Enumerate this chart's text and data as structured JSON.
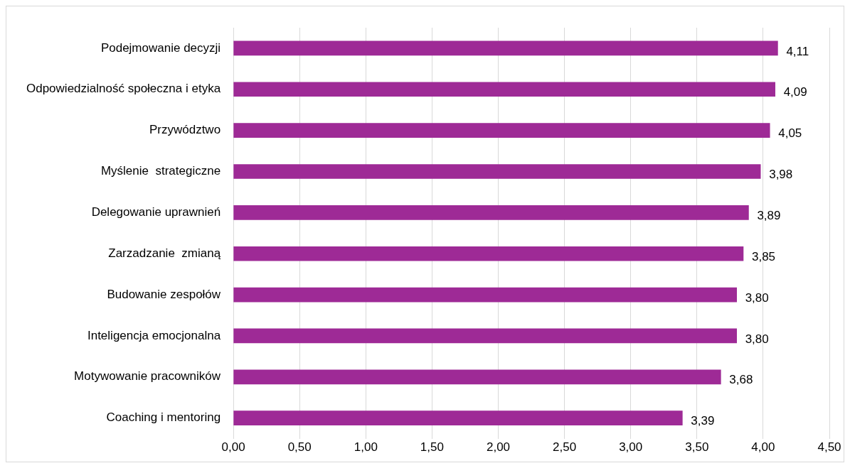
{
  "chart_data": {
    "type": "bar",
    "orientation": "horizontal",
    "categories": [
      "Podejmowanie decyzji",
      "Odpowiedzialność społeczna i etyka",
      "Przywództwo",
      "Myślenie  strategiczne",
      "Delegowanie uprawnień",
      "Zarzadzanie  zmianą",
      "Budowanie zespołów",
      "Inteligencja emocjonalna",
      "Motywowanie pracowników",
      "Coaching i mentoring"
    ],
    "values": [
      4.11,
      4.09,
      4.05,
      3.98,
      3.89,
      3.85,
      3.8,
      3.8,
      3.68,
      3.39
    ],
    "value_labels": [
      "4,11",
      "4,09",
      "4,05",
      "3,98",
      "3,89",
      "3,85",
      "3,80",
      "3,80",
      "3,68",
      "3,39"
    ],
    "color": "#9e2a96",
    "xlim": [
      0,
      4.5
    ],
    "xticks": [
      {
        "value": 0,
        "label": "0,00"
      },
      {
        "value": 0.5,
        "label": "0,50"
      },
      {
        "value": 1,
        "label": "1,00"
      },
      {
        "value": 1.5,
        "label": "1,50"
      },
      {
        "value": 2,
        "label": "2,00"
      },
      {
        "value": 2.5,
        "label": "2,50"
      },
      {
        "value": 3,
        "label": "3,00"
      },
      {
        "value": 3.5,
        "label": "3,50"
      },
      {
        "value": 4,
        "label": "4,00"
      },
      {
        "value": 4.5,
        "label": "4,50"
      }
    ],
    "grid": "x"
  }
}
